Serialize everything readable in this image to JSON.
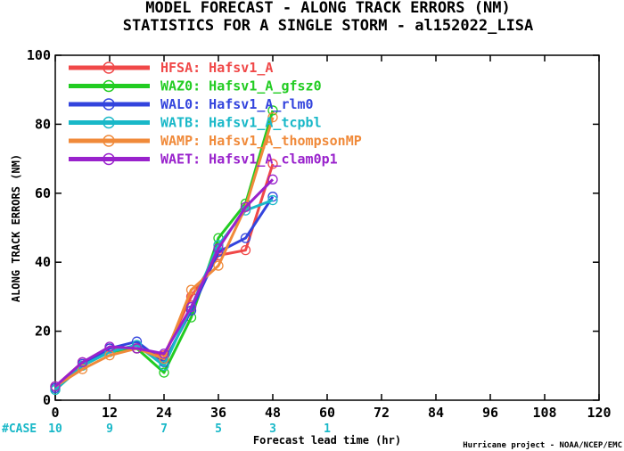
{
  "chart_data": {
    "type": "line",
    "title": "MODEL FORECAST - ALONG TRACK ERRORS (NM)",
    "subtitle": "STATISTICS FOR A SINGLE STORM - al152022_LISA",
    "xlabel": "Forecast lead time (hr)",
    "ylabel": "ALONG TRACK ERRORS (NM)",
    "xlim": [
      0,
      120
    ],
    "ylim": [
      0,
      100
    ],
    "xticks": [
      0,
      12,
      24,
      36,
      48,
      60,
      72,
      84,
      96,
      108,
      120
    ],
    "yticks": [
      0,
      20,
      40,
      60,
      80,
      100
    ],
    "grid": false,
    "legend_position": "top-left",
    "case_label": "#CASE",
    "cases": [
      {
        "x": 0,
        "n": "10"
      },
      {
        "x": 12,
        "n": "9"
      },
      {
        "x": 24,
        "n": "7"
      },
      {
        "x": 36,
        "n": "5"
      },
      {
        "x": 48,
        "n": "3"
      },
      {
        "x": 60,
        "n": "1"
      }
    ],
    "credit": "Hurricane project - NOAA/NCEP/EMC",
    "series": [
      {
        "name": "HFSA: Hafsv1_A",
        "color": "#f04848",
        "x": [
          0,
          6,
          12,
          18,
          24,
          30,
          36,
          42,
          48
        ],
        "y": [
          4,
          11,
          15,
          15,
          13,
          30,
          42,
          43.5,
          68.5
        ]
      },
      {
        "name": "WAZ0: Hafsv1_A_gfsz0",
        "color": "#22cc22",
        "x": [
          0,
          6,
          12,
          18,
          24,
          30,
          36,
          42,
          48
        ],
        "y": [
          3,
          10,
          14,
          15,
          8,
          24,
          47,
          57,
          84
        ]
      },
      {
        "name": "WAL0: Hafsv1_A_rlm0",
        "color": "#3344dd",
        "x": [
          0,
          6,
          12,
          18,
          24,
          30,
          36,
          42,
          48
        ],
        "y": [
          3.5,
          10.5,
          15,
          17,
          11,
          26,
          43,
          47,
          59
        ]
      },
      {
        "name": "WATB: Hafsv1_A_tcpbl",
        "color": "#19b8c8",
        "x": [
          0,
          6,
          12,
          18,
          24,
          30,
          36,
          42,
          48
        ],
        "y": [
          3,
          10,
          14,
          16,
          10,
          27,
          45,
          55,
          58
        ]
      },
      {
        "name": "WAMP: Hafsv1_A_thompsonMP",
        "color": "#f08a3a",
        "x": [
          0,
          6,
          12,
          18,
          24,
          30,
          36,
          42,
          48
        ],
        "y": [
          4,
          9,
          13,
          15,
          12,
          32,
          39,
          56,
          82
        ]
      },
      {
        "name": "WAET: Hafsv1_A_clam0p1",
        "color": "#9922cc",
        "x": [
          0,
          6,
          12,
          18,
          24,
          30,
          36,
          42,
          48
        ],
        "y": [
          4,
          11,
          15.5,
          15,
          13.5,
          27,
          44,
          56,
          64
        ]
      }
    ]
  }
}
